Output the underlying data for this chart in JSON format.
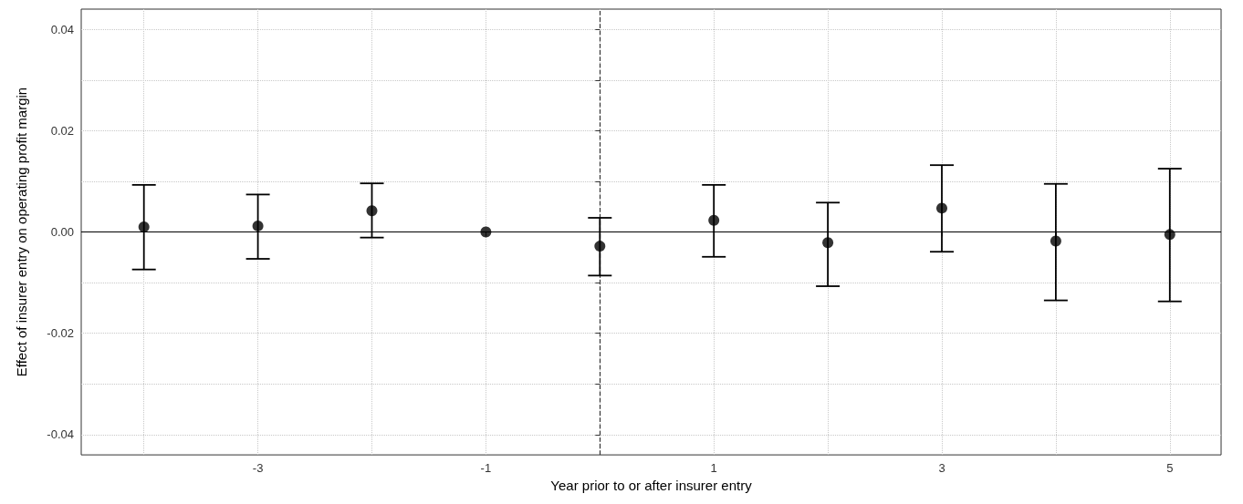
{
  "chart_data": {
    "type": "scatter",
    "xlabel": "Year prior to or after insurer entry",
    "ylabel": "Effect of insurer entry on operating profit margin",
    "x": [
      -4,
      -3,
      -2,
      -1,
      0,
      1,
      2,
      3,
      4,
      5
    ],
    "values": [
      0.001,
      0.0012,
      0.0042,
      0,
      -0.0028,
      0.0023,
      -0.0021,
      0.0047,
      -0.0018,
      -0.0005
    ],
    "errors": [
      [
        -0.0074,
        0.0093
      ],
      [
        -0.0053,
        0.0074
      ],
      [
        -0.0011,
        0.0096
      ],
      null,
      [
        -0.0086,
        0.0028
      ],
      [
        -0.0049,
        0.0093
      ],
      [
        -0.0107,
        0.0058
      ],
      [
        -0.0039,
        0.0132
      ],
      [
        -0.0135,
        0.0095
      ],
      [
        -0.0137,
        0.0125
      ]
    ],
    "color": "#000000",
    "marker": "circle",
    "xlim": [
      -4.55,
      5.45
    ],
    "xticks": [
      {
        "value": -4,
        "label": null
      },
      -3,
      {
        "value": -2,
        "label": null
      },
      -1,
      {
        "value": 0,
        "label": null
      },
      1,
      {
        "value": 2,
        "label": null
      },
      3,
      {
        "value": 4,
        "label": null
      },
      5
    ],
    "ylim": [
      -0.044,
      0.044
    ],
    "yticks": [
      -0.04,
      {
        "value": -0.03,
        "label": null
      },
      -0.02,
      {
        "value": -0.01,
        "label": null
      },
      "0.00",
      {
        "value": 0.01,
        "label": null
      },
      0.02,
      {
        "value": 0.03,
        "label": null
      },
      0.04
    ],
    "ref_lines": [
      {
        "axis": "x",
        "value": 0,
        "line_style": "dashed",
        "color": "#333333"
      },
      {
        "axis": "y",
        "value": 0,
        "line_style": "solid",
        "color": "#000000"
      }
    ],
    "grid": true,
    "legend": false
  }
}
